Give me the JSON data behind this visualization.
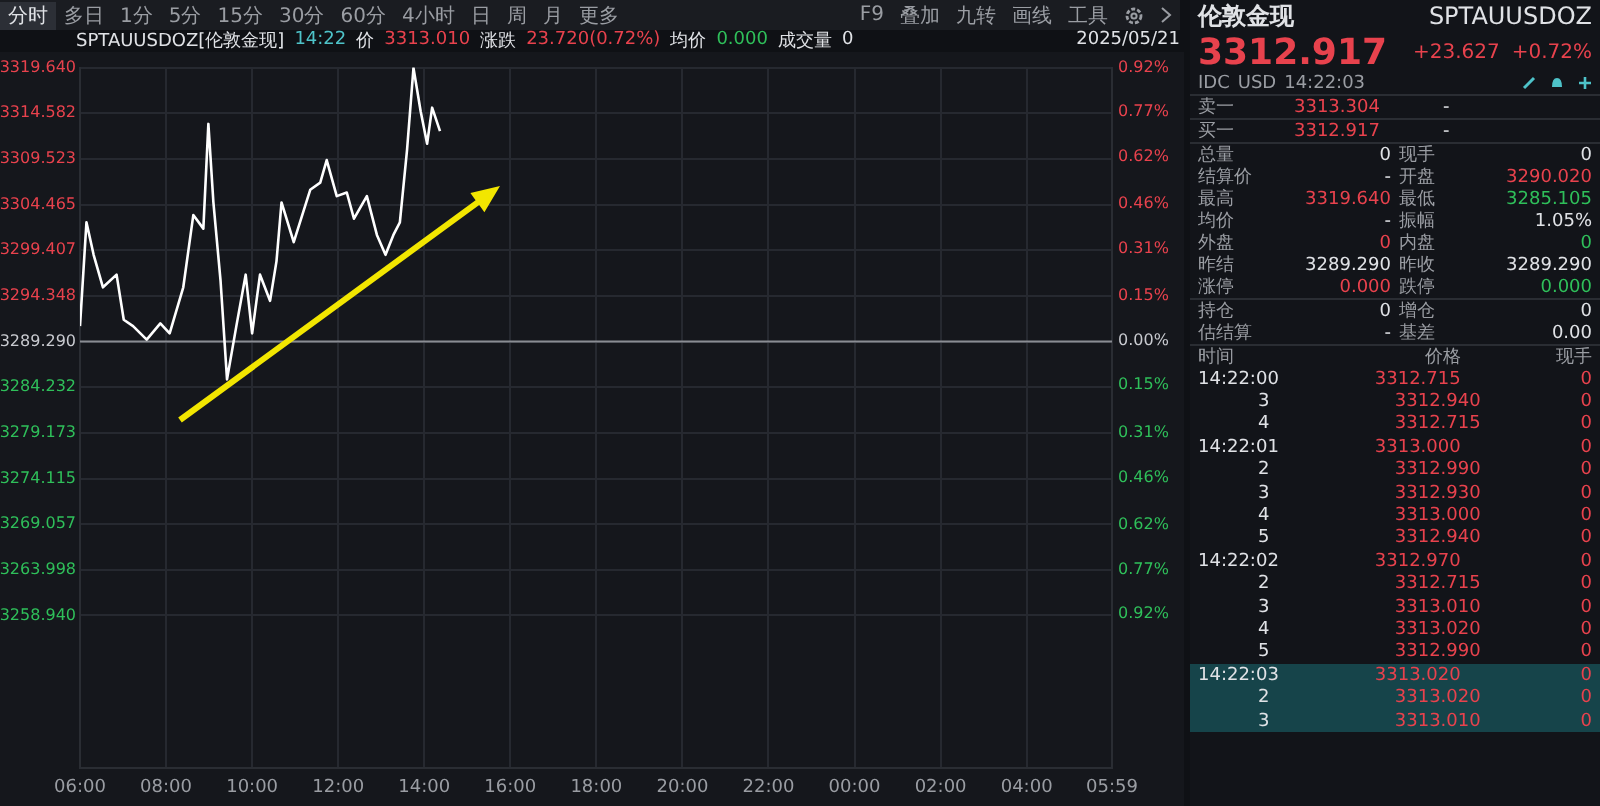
{
  "chart_data": {
    "type": "line",
    "title": "SPTAUUSDOZ[伦敦金现]",
    "x": [
      "2025-05-21T06:00",
      "2025-05-21T06:09",
      "2025-05-21T06:19",
      "2025-05-21T06:32",
      "2025-05-21T06:51",
      "2025-05-21T07:01",
      "2025-05-21T07:14",
      "2025-05-21T07:33",
      "2025-05-21T07:52",
      "2025-05-21T08:05",
      "2025-05-21T08:24",
      "2025-05-21T08:38",
      "2025-05-21T08:52",
      "2025-05-21T08:59",
      "2025-05-21T09:06",
      "2025-05-21T09:16",
      "2025-05-21T09:25",
      "2025-05-21T09:38",
      "2025-05-21T09:51",
      "2025-05-21T10:00",
      "2025-05-21T10:11",
      "2025-05-21T10:25",
      "2025-05-21T10:34",
      "2025-05-21T10:41",
      "2025-05-21T10:58",
      "2025-05-21T11:21",
      "2025-05-21T11:35",
      "2025-05-21T11:44",
      "2025-05-21T11:58",
      "2025-05-21T12:12",
      "2025-05-21T12:22",
      "2025-05-21T12:40",
      "2025-05-21T12:54",
      "2025-05-21T13:06",
      "2025-05-21T13:17",
      "2025-05-21T13:26",
      "2025-05-21T13:36",
      "2025-05-21T13:45",
      "2025-05-21T13:55",
      "2025-05-21T14:04",
      "2025-05-21T14:11",
      "2025-05-21T14:22"
    ],
    "series": [
      {
        "color": "#ffffff",
        "values": [
          3291.0,
          3302.5,
          3298.9,
          3295.3,
          3296.7,
          3291.7,
          3291.0,
          3289.5,
          3291.3,
          3290.2,
          3295.3,
          3303.3,
          3301.8,
          3313.4,
          3304.7,
          3296.0,
          3285.1,
          3291.0,
          3296.7,
          3290.2,
          3296.7,
          3293.8,
          3298.2,
          3304.7,
          3300.3,
          3306.1,
          3306.9,
          3309.4,
          3305.4,
          3305.8,
          3302.9,
          3305.4,
          3301.1,
          3298.9,
          3301.1,
          3302.5,
          3310.5,
          3319.6,
          3314.8,
          3311.2,
          3315.2,
          3312.6
        ]
      }
    ],
    "xlim": [
      "2025-05-21T06:00",
      "2025-05-22T05:59"
    ],
    "xticks": [
      {
        "value": "2025-05-21T06:00",
        "label": "06:00"
      },
      {
        "value": "2025-05-21T08:00",
        "label": "08:00"
      },
      {
        "value": "2025-05-21T10:00",
        "label": "10:00"
      },
      {
        "value": "2025-05-21T12:00",
        "label": "12:00"
      },
      {
        "value": "2025-05-21T14:00",
        "label": "14:00"
      },
      {
        "value": "2025-05-21T16:00",
        "label": "16:00"
      },
      {
        "value": "2025-05-21T18:00",
        "label": "18:00"
      },
      {
        "value": "2025-05-21T20:00",
        "label": "20:00"
      },
      {
        "value": "2025-05-21T22:00",
        "label": "22:00"
      },
      {
        "value": "2025-05-22T00:00",
        "label": "00:00"
      },
      {
        "value": "2025-05-22T02:00",
        "label": "02:00"
      },
      {
        "value": "2025-05-22T04:00",
        "label": "04:00"
      },
      {
        "value": "2025-05-22T05:59",
        "label": "05:59"
      }
    ],
    "ylim": [
      3242,
      3319.64
    ],
    "yticks": [
      {
        "value": 3319.64,
        "label": "3319.640"
      },
      {
        "value": 3314.582,
        "label": "3314.582"
      },
      {
        "value": 3309.523,
        "label": "3309.523"
      },
      {
        "value": 3304.465,
        "label": "3304.465"
      },
      {
        "value": 3299.407,
        "label": "3299.407"
      },
      {
        "value": 3294.348,
        "label": "3294.348"
      },
      {
        "value": 3289.29,
        "label": "3289.290"
      },
      {
        "value": 3284.232,
        "label": "3284.232"
      },
      {
        "value": 3279.173,
        "label": "3279.173"
      },
      {
        "value": 3274.115,
        "label": "3274.115"
      },
      {
        "value": 3269.057,
        "label": "3269.057"
      },
      {
        "value": 3263.998,
        "label": "3263.998"
      },
      {
        "value": 3258.94,
        "label": "3258.940"
      }
    ],
    "y2lim": [
      -1.44,
      0.92
    ],
    "y2ticks": [
      {
        "value": 0.92,
        "label": "0.92%"
      },
      {
        "value": 0.77,
        "label": "0.77%"
      },
      {
        "value": 0.62,
        "label": "0.62%"
      },
      {
        "value": 0.46,
        "label": "0.46%"
      },
      {
        "value": 0.31,
        "label": "0.31%"
      },
      {
        "value": 0.15,
        "label": "0.15%"
      },
      {
        "value": 0,
        "label": "0.00%"
      },
      {
        "value": -0.15,
        "label": "0.15%"
      },
      {
        "value": -0.31,
        "label": "0.31%"
      },
      {
        "value": -0.46,
        "label": "0.46%"
      },
      {
        "value": -0.62,
        "label": "0.62%"
      },
      {
        "value": -0.77,
        "label": "0.77%"
      },
      {
        "value": -0.92,
        "label": "0.92%"
      }
    ],
    "ref_lines": [
      {
        "axis": "y",
        "value": 3289.29,
        "color": "#8a8d93"
      }
    ],
    "grid": true,
    "legend": false,
    "marker": "none",
    "line_style": "solid",
    "annotations": [
      "分时",
      "多日",
      "1分",
      "5分",
      "15分",
      "30分",
      "60分",
      "4小时",
      "日",
      "周",
      "月",
      "更多",
      "F9",
      "叠加",
      "九转",
      "画线",
      "工具",
      "14:22",
      "价",
      "3313.010",
      "涨跌",
      "23.720(0.72%)",
      "均价",
      "0.000",
      "成交量",
      "0",
      "2025/05/21",
      "伦敦金现",
      "SPTAUUSDOZ",
      "3312.917",
      "+23.627",
      "+0.72%",
      "IDC",
      "USD",
      "14:22:03",
      "卖一",
      "3313.304",
      "-",
      "买一",
      "3312.917",
      "-",
      "总量",
      "0",
      "现手",
      "0",
      "结算价",
      "-",
      "开盘",
      "3290.020",
      "最高",
      "3319.640",
      "最低",
      "3285.105",
      "均价",
      "-",
      "振幅",
      "1.05%",
      "外盘",
      "0",
      "内盘",
      "0",
      "昨结",
      "3289.290",
      "昨收",
      "3289.290",
      "涨停",
      "0.000",
      "跌停",
      "0.000",
      "持仓",
      "0",
      "增仓",
      "0",
      "估结算",
      "-",
      "基差",
      "0.00",
      "时间",
      "价格",
      "现手",
      "14:22:00",
      "3312.715",
      "0",
      "3",
      "3312.940",
      "0",
      "4",
      "3312.715",
      "0",
      "14:22:01",
      "3313.000",
      "0",
      "2",
      "3312.990",
      "0",
      "3",
      "3312.930",
      "0",
      "4",
      "3313.000",
      "0",
      "5",
      "3312.940",
      "0",
      "14:22:02",
      "3312.970",
      "0",
      "2",
      "3312.715",
      "0",
      "3",
      "3313.010",
      "0",
      "4",
      "3313.020",
      "0",
      "5",
      "3312.990",
      "0",
      "14:22:03",
      "3313.020",
      "0",
      "2",
      "3313.020",
      "0",
      "3",
      "3313.010",
      "0"
    ]
  }
}
